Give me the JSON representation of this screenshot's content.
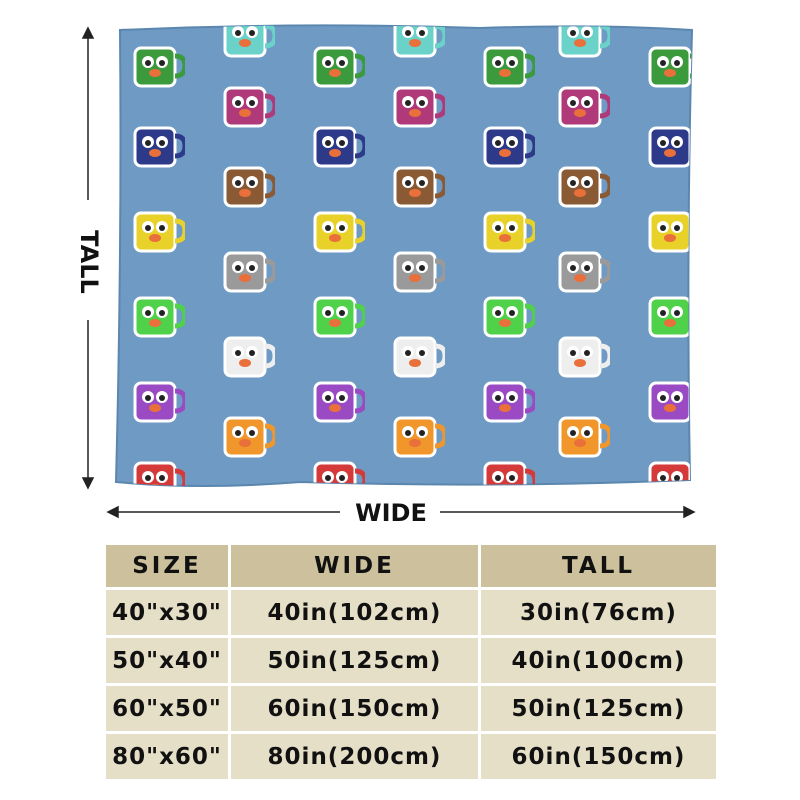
{
  "labels": {
    "tall": "TALL",
    "wide": "WIDE"
  },
  "table": {
    "columns": [
      "SIZE",
      "WIDE",
      "TALL"
    ],
    "rows": [
      [
        "40\"x30\"",
        "40in(102cm)",
        "30in(76cm)"
      ],
      [
        "50\"x40\"",
        "50in(125cm)",
        "40in(100cm)"
      ],
      [
        "60\"x50\"",
        "60in(150cm)",
        "50in(125cm)"
      ],
      [
        "80\"x60\"",
        "80in(200cm)",
        "60in(150cm)"
      ]
    ]
  }
}
